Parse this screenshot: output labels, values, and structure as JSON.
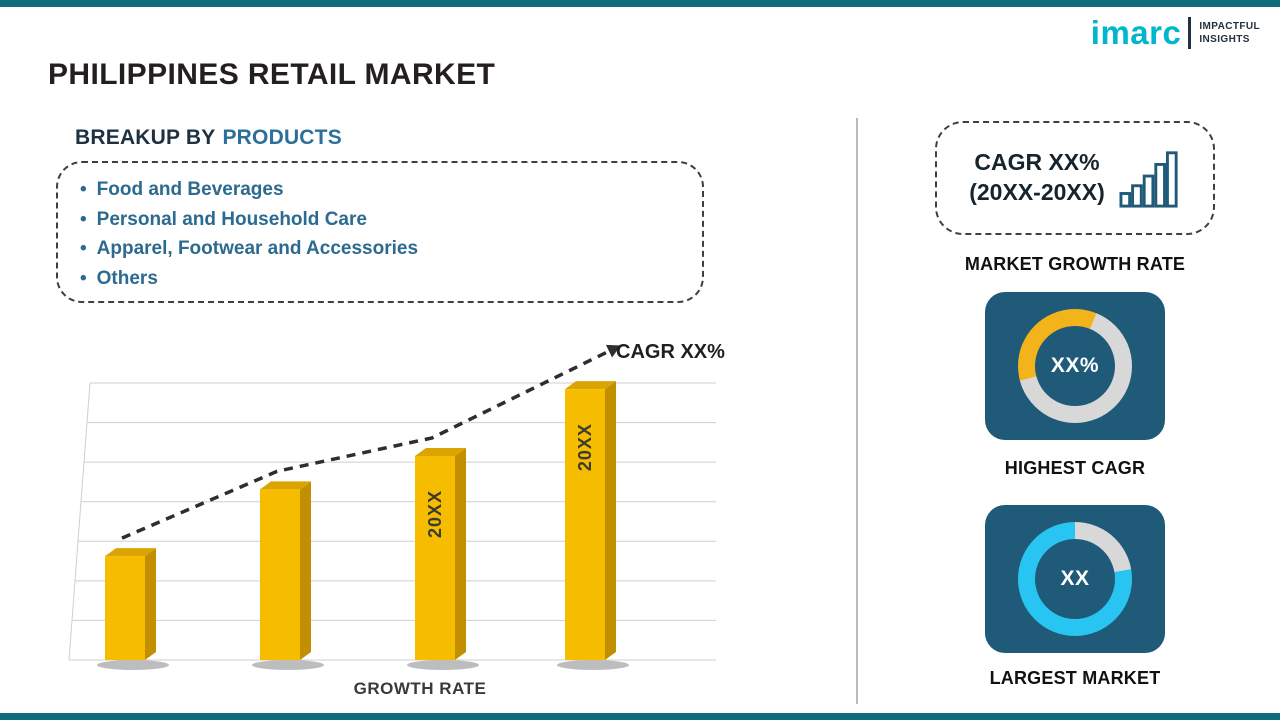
{
  "page": {
    "title": "PHILIPPINES RETAIL MARKET"
  },
  "logo": {
    "brand": "imarc",
    "tagline_line1": "IMPACTFUL",
    "tagline_line2": "INSIGHTS"
  },
  "breakup": {
    "heading_prefix": "BREAKUP BY",
    "heading_highlight": "PRODUCTS",
    "items": [
      "Food and Beverages",
      "Personal and Household Care",
      "Apparel, Footwear and Accessories",
      "Others"
    ]
  },
  "chart_data": {
    "type": "bar",
    "title": "",
    "xlabel": "GROWTH RATE",
    "ylabel": "",
    "categories": [
      "",
      "",
      "20XX",
      "20XX"
    ],
    "values": [
      28,
      46,
      55,
      73
    ],
    "ylim": [
      0,
      100
    ],
    "grid": true,
    "legend_position": "none",
    "bar_color": "#F5BC00",
    "bar_side_color": "#C28F00",
    "bar_top_color": "#DBA400",
    "trend_label": "CAGR XX%"
  },
  "sidebar": {
    "growth_card": {
      "line1": "CAGR XX%",
      "line2": "(20XX-20XX)",
      "caption": "MARKET GROWTH RATE"
    },
    "highest_cagr": {
      "value": "XX%",
      "caption": "HIGHEST CAGR",
      "accent": "#F2B31B"
    },
    "largest_market": {
      "value": "XX",
      "caption": "LARGEST MARKET",
      "accent": "#29C5F2"
    }
  },
  "colors": {
    "accent_teal": "#0F6B7C",
    "card_blue": "#1F5A78",
    "donut_track": "#D8D8D8",
    "heading_blue": "#2C6F9B",
    "list_blue": "#2C6A8F",
    "text_dark": "#1F1F1F"
  }
}
